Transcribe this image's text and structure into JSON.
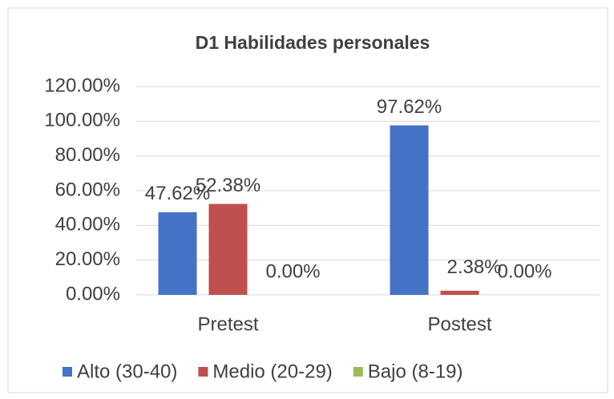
{
  "chart_data": {
    "type": "bar",
    "title": "D1 Habilidades  personales",
    "categories": [
      "Pretest",
      "Postest"
    ],
    "series": [
      {
        "name": "Alto (30-40)",
        "color": "#4472c4",
        "values": [
          47.62,
          97.62
        ],
        "value_labels": [
          "47.62%",
          "97.62%"
        ]
      },
      {
        "name": "Medio (20-29)",
        "color": "#c0504d",
        "values": [
          52.38,
          2.38
        ],
        "value_labels": [
          "52.38%",
          "2.38%"
        ]
      },
      {
        "name": "Bajo (8-19)",
        "color": "#9bbb59",
        "values": [
          0,
          0
        ],
        "value_labels": [
          "0.00%",
          "0.00%"
        ]
      }
    ],
    "ylim": [
      0,
      120
    ],
    "yticks": [
      {
        "value": 0,
        "label": "0.00%"
      },
      {
        "value": 20,
        "label": "20.00%"
      },
      {
        "value": 40,
        "label": "40.00%"
      },
      {
        "value": 60,
        "label": "60.00%"
      },
      {
        "value": 80,
        "label": "80.00%"
      },
      {
        "value": 100,
        "label": "100.00%"
      },
      {
        "value": 120,
        "label": "120.00%"
      }
    ],
    "grid": true,
    "legend": "bottom"
  }
}
